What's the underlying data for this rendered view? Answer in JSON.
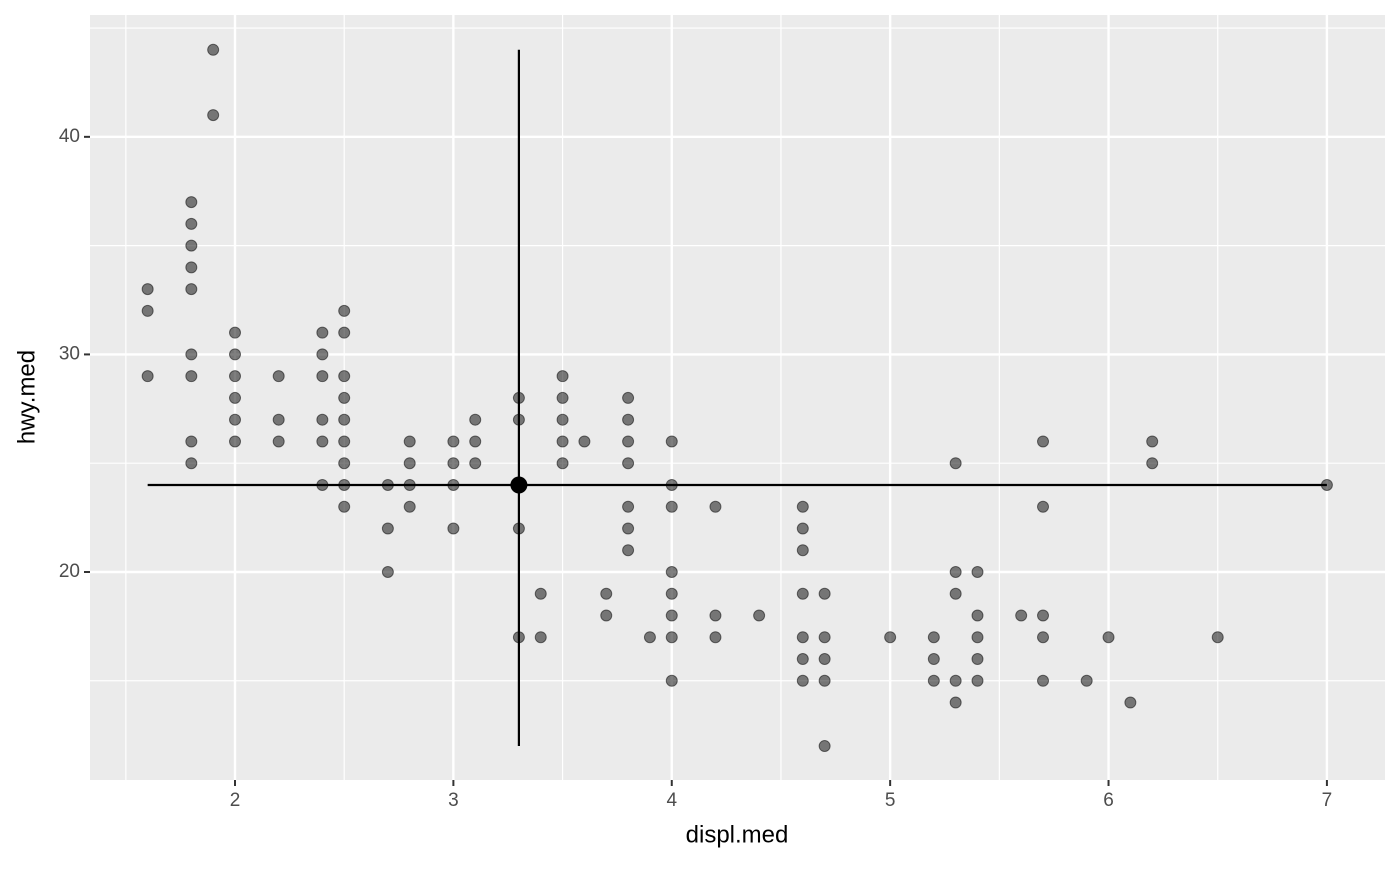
{
  "chart_data": {
    "type": "scatter",
    "x_label": "displ.med",
    "y_label": "hwy.med",
    "xlim": [
      1.336,
      7.266
    ],
    "ylim": [
      10.44,
      45.6
    ],
    "xticks": [
      2,
      3,
      4,
      5,
      6,
      7
    ],
    "yticks": [
      20,
      30,
      40
    ],
    "xminor": [
      1.5,
      2.5,
      3.5,
      4.5,
      5.5,
      6.5
    ],
    "yminor": [
      15,
      25,
      35,
      45
    ],
    "grid": true,
    "color": "#000000",
    "alpha": 0.5,
    "series": [
      {
        "x": [
          1.6,
          1.6,
          1.6,
          1.8,
          1.8,
          1.8,
          1.8,
          1.8,
          1.8,
          1.8,
          1.8,
          1.8,
          1.9,
          1.9,
          2.0,
          2.0,
          2.0,
          2.0,
          2.0,
          2.0,
          2.2,
          2.2,
          2.2,
          2.4,
          2.4,
          2.4,
          2.4,
          2.4,
          2.4,
          2.5,
          2.5,
          2.5,
          2.5,
          2.5,
          2.5,
          2.5,
          2.5,
          2.5,
          2.7,
          2.7,
          2.7,
          2.8,
          2.8,
          2.8,
          2.8,
          3.0,
          3.0,
          3.0,
          3.0,
          3.1,
          3.1,
          3.1,
          3.3,
          3.3,
          3.3,
          3.3,
          3.4,
          3.4,
          3.5,
          3.5,
          3.5,
          3.5,
          3.5,
          3.6,
          3.7,
          3.7,
          3.8,
          3.8,
          3.8,
          3.8,
          3.8,
          3.8,
          3.8,
          3.9,
          4.0,
          4.0,
          4.0,
          4.0,
          4.0,
          4.0,
          4.0,
          4.0,
          4.2,
          4.2,
          4.2,
          4.4,
          4.6,
          4.6,
          4.6,
          4.6,
          4.6,
          4.6,
          4.6,
          4.7,
          4.7,
          4.7,
          4.7,
          4.7,
          5.0,
          5.2,
          5.2,
          5.2,
          5.3,
          5.3,
          5.3,
          5.3,
          5.3,
          5.4,
          5.4,
          5.4,
          5.4,
          5.4,
          5.6,
          5.7,
          5.7,
          5.7,
          5.7,
          5.7,
          5.9,
          6.0,
          6.1,
          6.2,
          6.2,
          6.5,
          7.0
        ],
        "values": [
          33,
          32,
          29,
          37,
          36,
          35,
          34,
          33,
          30,
          29,
          26,
          25,
          44,
          41,
          31,
          30,
          29,
          28,
          27,
          26,
          29,
          27,
          26,
          31,
          30,
          29,
          27,
          26,
          24,
          32,
          31,
          29,
          28,
          27,
          26,
          25,
          24,
          23,
          24,
          22,
          20,
          26,
          25,
          24,
          23,
          26,
          25,
          24,
          22,
          27,
          26,
          25,
          28,
          27,
          22,
          17,
          19,
          17,
          29,
          28,
          27,
          26,
          25,
          26,
          19,
          18,
          28,
          27,
          26,
          25,
          23,
          22,
          21,
          17,
          26,
          24,
          23,
          20,
          19,
          18,
          17,
          15,
          23,
          18,
          17,
          18,
          23,
          22,
          21,
          19,
          17,
          16,
          15,
          19,
          17,
          16,
          15,
          12,
          17,
          17,
          16,
          15,
          25,
          20,
          19,
          15,
          14,
          20,
          18,
          17,
          16,
          15,
          18,
          26,
          23,
          18,
          17,
          15,
          15,
          17,
          14,
          26,
          25,
          17,
          24
        ]
      }
    ],
    "median": {
      "x": 3.3,
      "y": 24,
      "xrange": [
        1.6,
        7.0
      ],
      "yrange": [
        12,
        44
      ]
    }
  }
}
